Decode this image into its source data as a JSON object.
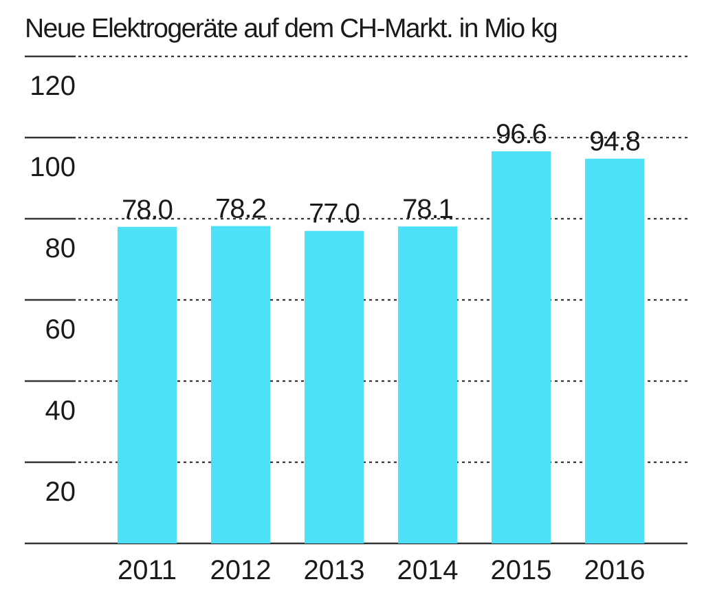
{
  "chart_data": {
    "type": "bar",
    "title": "Neue Elektrogeräte auf dem CH-Markt. in Mio kg",
    "xlabel": "",
    "ylabel": "",
    "categories": [
      "2011",
      "2012",
      "2013",
      "2014",
      "2015",
      "2016"
    ],
    "values": [
      78.0,
      78.2,
      77.0,
      78.1,
      96.6,
      94.8
    ],
    "value_labels": [
      "78.0",
      "78.2",
      "77.0",
      "78.1",
      "96.6",
      "94.8"
    ],
    "yticks": [
      20,
      40,
      60,
      80,
      100,
      120
    ],
    "ytick_labels": [
      "20",
      "40",
      "60",
      "80",
      "100",
      "120"
    ],
    "ylim": [
      0,
      120
    ],
    "grid": true,
    "legend": "none",
    "bar_color": "#4de1f8",
    "grid_color": "#333333",
    "text_color": "#1a1a1a"
  }
}
